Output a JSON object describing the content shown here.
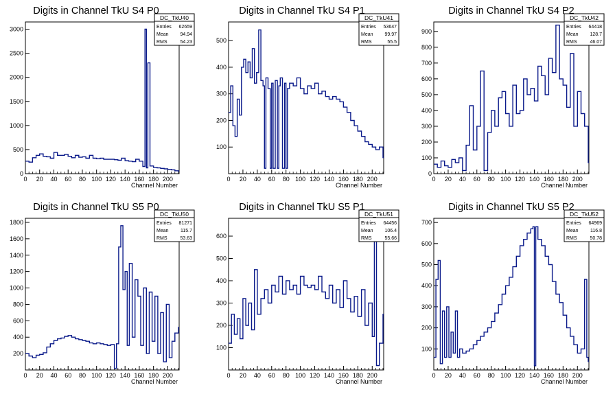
{
  "chart_data": [
    {
      "type": "line",
      "title": "Digits in Channel TkU S4 P0",
      "xlabel": "Channel Number",
      "xlim": [
        0,
        216
      ],
      "ylim": [
        0,
        3150
      ],
      "xticks": [
        "0",
        "20",
        "40",
        "60",
        "80",
        "100",
        "120",
        "140",
        "160",
        "180",
        "200"
      ],
      "yticks": [
        "0",
        "500",
        "1000",
        "1500",
        "2000",
        "2500",
        "3000"
      ],
      "stats": {
        "name": "DC_TkU40",
        "rows": [
          [
            "Entries",
            "62659"
          ],
          [
            "Mean",
            "94.94"
          ],
          [
            "RMS",
            "54.23"
          ]
        ]
      },
      "series": [
        {
          "x": [
            0,
            5,
            10,
            15,
            20,
            25,
            30,
            35,
            40,
            45,
            50,
            55,
            60,
            65,
            70,
            75,
            80,
            85,
            90,
            95,
            100,
            105,
            110,
            115,
            120,
            125,
            130,
            135,
            140,
            145,
            150,
            155,
            160,
            165,
            168,
            170,
            172,
            175,
            180,
            185,
            190,
            195,
            200,
            205,
            210,
            215
          ],
          "values": [
            260,
            240,
            330,
            380,
            410,
            360,
            350,
            320,
            440,
            380,
            380,
            400,
            360,
            330,
            380,
            340,
            350,
            320,
            380,
            320,
            310,
            320,
            300,
            300,
            300,
            290,
            280,
            320,
            270,
            260,
            250,
            300,
            260,
            150,
            3000,
            120,
            2300,
            160,
            130,
            120,
            110,
            100,
            90,
            80,
            60,
            50
          ]
        }
      ]
    },
    {
      "type": "line",
      "title": "Digits in Channel TkU S4 P1",
      "xlabel": "Channel Number",
      "xlim": [
        0,
        216
      ],
      "ylim": [
        0,
        570
      ],
      "xticks": [
        "0",
        "20",
        "40",
        "60",
        "80",
        "100",
        "120",
        "140",
        "160",
        "180",
        "200"
      ],
      "yticks": [
        "100",
        "200",
        "300",
        "400",
        "500"
      ],
      "stats": {
        "name": "DC_TkU41",
        "rows": [
          [
            "Entries",
            "53647"
          ],
          [
            "Mean",
            "99.97"
          ],
          [
            "RMS",
            "55.5"
          ]
        ]
      },
      "series": [
        {
          "x": [
            0,
            3,
            6,
            9,
            12,
            15,
            18,
            21,
            24,
            27,
            30,
            33,
            36,
            39,
            42,
            45,
            48,
            50,
            52,
            55,
            58,
            60,
            62,
            65,
            68,
            70,
            72,
            75,
            78,
            80,
            82,
            85,
            90,
            95,
            100,
            105,
            110,
            115,
            120,
            125,
            130,
            135,
            140,
            145,
            150,
            155,
            160,
            165,
            170,
            175,
            180,
            185,
            190,
            195,
            200,
            205,
            210,
            215
          ],
          "values": [
            230,
            330,
            180,
            140,
            280,
            220,
            400,
            430,
            380,
            420,
            360,
            470,
            340,
            380,
            540,
            350,
            330,
            20,
            360,
            320,
            20,
            340,
            20,
            350,
            20,
            330,
            360,
            20,
            340,
            20,
            320,
            340,
            330,
            360,
            320,
            300,
            330,
            320,
            340,
            300,
            310,
            290,
            280,
            290,
            280,
            270,
            250,
            230,
            200,
            180,
            160,
            140,
            120,
            110,
            100,
            90,
            100,
            60
          ]
        }
      ]
    },
    {
      "type": "line",
      "title": "Digits in Channel TkU S4 P2",
      "xlabel": "Channel Number",
      "xlim": [
        0,
        216
      ],
      "ylim": [
        0,
        960
      ],
      "xticks": [
        "0",
        "20",
        "40",
        "60",
        "80",
        "100",
        "120",
        "140",
        "160",
        "180",
        "200"
      ],
      "yticks": [
        "0",
        "100",
        "200",
        "300",
        "400",
        "500",
        "600",
        "700",
        "800",
        "900"
      ],
      "stats": {
        "name": "DC_TkU42",
        "rows": [
          [
            "Entries",
            "64418"
          ],
          [
            "Mean",
            "128.7"
          ],
          [
            "RMS",
            "46.07"
          ]
        ]
      },
      "series": [
        {
          "x": [
            0,
            5,
            10,
            15,
            20,
            25,
            30,
            35,
            40,
            45,
            50,
            55,
            60,
            65,
            70,
            75,
            80,
            85,
            90,
            95,
            100,
            105,
            110,
            115,
            120,
            125,
            130,
            135,
            140,
            145,
            150,
            155,
            160,
            165,
            170,
            175,
            180,
            185,
            190,
            195,
            200,
            205,
            210,
            215
          ],
          "values": [
            60,
            40,
            80,
            50,
            40,
            90,
            70,
            100,
            20,
            180,
            430,
            150,
            300,
            650,
            20,
            260,
            400,
            300,
            480,
            520,
            380,
            300,
            560,
            380,
            400,
            600,
            500,
            540,
            460,
            680,
            620,
            500,
            730,
            640,
            940,
            600,
            560,
            420,
            760,
            300,
            520,
            380,
            300,
            70
          ]
        }
      ]
    },
    {
      "type": "line",
      "title": "Digits in Channel TkU S5 P0",
      "xlabel": "Channel Number",
      "xlim": [
        0,
        216
      ],
      "ylim": [
        0,
        1850
      ],
      "xticks": [
        "0",
        "20",
        "40",
        "60",
        "80",
        "100",
        "120",
        "140",
        "160",
        "180",
        "200"
      ],
      "yticks": [
        "200",
        "400",
        "600",
        "800",
        "1000",
        "1200",
        "1400",
        "1600",
        "1800"
      ],
      "stats": {
        "name": "DC_TkU50",
        "rows": [
          [
            "Entries",
            "81271"
          ],
          [
            "Mean",
            "115.7"
          ],
          [
            "RMS",
            "53.63"
          ]
        ]
      },
      "series": [
        {
          "x": [
            0,
            5,
            10,
            15,
            20,
            25,
            30,
            35,
            40,
            45,
            50,
            55,
            60,
            65,
            70,
            75,
            80,
            85,
            90,
            95,
            100,
            105,
            110,
            115,
            120,
            125,
            128,
            131,
            134,
            137,
            140,
            143,
            146,
            150,
            154,
            158,
            162,
            166,
            170,
            174,
            178,
            182,
            186,
            190,
            194,
            198,
            202,
            206,
            210,
            215
          ],
          "values": [
            200,
            170,
            150,
            180,
            190,
            210,
            280,
            320,
            360,
            380,
            390,
            410,
            420,
            400,
            380,
            370,
            360,
            350,
            330,
            320,
            330,
            320,
            310,
            300,
            310,
            20,
            320,
            1500,
            1760,
            980,
            1200,
            300,
            1300,
            400,
            1100,
            900,
            300,
            1000,
            200,
            950,
            350,
            900,
            200,
            700,
            100,
            800,
            150,
            350,
            450,
            520
          ]
        }
      ]
    },
    {
      "type": "line",
      "title": "Digits in Channel TkU S5 P1",
      "xlabel": "Channel Number",
      "xlim": [
        0,
        216
      ],
      "ylim": [
        0,
        680
      ],
      "xticks": [
        "0",
        "20",
        "40",
        "60",
        "80",
        "100",
        "120",
        "140",
        "160",
        "180",
        "200"
      ],
      "yticks": [
        "100",
        "200",
        "300",
        "400",
        "500",
        "600"
      ],
      "stats": {
        "name": "DC_TkU51",
        "rows": [
          [
            "Entries",
            "64456"
          ],
          [
            "Mean",
            "106.4"
          ],
          [
            "RMS",
            "55.66"
          ]
        ]
      },
      "series": [
        {
          "x": [
            0,
            4,
            8,
            12,
            16,
            20,
            24,
            28,
            32,
            36,
            40,
            45,
            50,
            55,
            60,
            65,
            70,
            75,
            80,
            85,
            90,
            95,
            100,
            105,
            110,
            115,
            120,
            125,
            130,
            135,
            140,
            145,
            150,
            155,
            160,
            165,
            170,
            175,
            180,
            185,
            190,
            195,
            200,
            203,
            206,
            210,
            215
          ],
          "values": [
            120,
            250,
            160,
            230,
            140,
            320,
            200,
            300,
            180,
            450,
            250,
            320,
            360,
            300,
            380,
            350,
            420,
            340,
            400,
            360,
            380,
            340,
            420,
            380,
            370,
            380,
            360,
            420,
            350,
            320,
            380,
            300,
            360,
            280,
            400,
            320,
            260,
            330,
            240,
            360,
            200,
            300,
            150,
            590,
            20,
            120,
            250
          ]
        }
      ]
    },
    {
      "type": "line",
      "title": "Digits in Channel TkU S5 P2",
      "xlabel": "Channel Number",
      "xlim": [
        0,
        216
      ],
      "ylim": [
        0,
        720
      ],
      "xticks": [
        "0",
        "20",
        "40",
        "60",
        "80",
        "100",
        "120",
        "140",
        "160",
        "180",
        "200"
      ],
      "yticks": [
        "100",
        "200",
        "300",
        "400",
        "500",
        "600",
        "700"
      ],
      "stats": {
        "name": "DC_TkU52",
        "rows": [
          [
            "Entries",
            "64969"
          ],
          [
            "Mean",
            "116.8"
          ],
          [
            "RMS",
            "50.78"
          ]
        ]
      },
      "series": [
        {
          "x": [
            0,
            3,
            6,
            9,
            12,
            15,
            18,
            21,
            24,
            27,
            30,
            33,
            36,
            40,
            45,
            50,
            55,
            60,
            65,
            70,
            75,
            80,
            85,
            90,
            95,
            100,
            105,
            110,
            115,
            120,
            125,
            130,
            135,
            138,
            140,
            142,
            145,
            150,
            155,
            160,
            165,
            170,
            175,
            180,
            185,
            190,
            195,
            200,
            205,
            210,
            213,
            215
          ],
          "values": [
            60,
            430,
            520,
            30,
            280,
            60,
            300,
            60,
            180,
            80,
            280,
            60,
            100,
            80,
            90,
            100,
            120,
            140,
            160,
            180,
            200,
            230,
            270,
            310,
            360,
            400,
            440,
            490,
            540,
            590,
            620,
            650,
            670,
            680,
            20,
            680,
            620,
            590,
            540,
            500,
            420,
            360,
            320,
            260,
            200,
            160,
            120,
            80,
            100,
            430,
            60,
            40
          ]
        }
      ]
    }
  ]
}
